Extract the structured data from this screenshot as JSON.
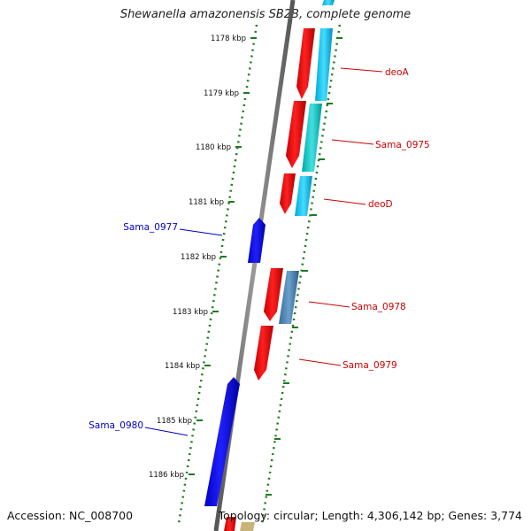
{
  "title": "Shewanella amazonensis SB2B, complete genome",
  "footer": {
    "accession": "Accession: NC_008700",
    "topology": "Topology: circular; Length: 4,306,142 bp; Genes: 3,774"
  },
  "ruler": {
    "unit": "kbp",
    "ticks": [
      "1178 kbp",
      "1179 kbp",
      "1180 kbp",
      "1181 kbp",
      "1182 kbp",
      "1183 kbp",
      "1184 kbp",
      "1185 kbp",
      "1186 kbp"
    ]
  },
  "genes": [
    {
      "name": "deoA",
      "strand": "forward",
      "color": "#ff0000",
      "partner_color": "#22ccee"
    },
    {
      "name": "Sama_0975",
      "strand": "forward",
      "color": "#ff0000",
      "partner_color": "#22cccc"
    },
    {
      "name": "deoD",
      "strand": "forward",
      "color": "#ff0000",
      "partner_color": "#22bbee"
    },
    {
      "name": "Sama_0977",
      "strand": "reverse",
      "color": "#0000ff"
    },
    {
      "name": "Sama_0978",
      "strand": "forward",
      "color": "#ff0000",
      "partner_color": "#4682b4"
    },
    {
      "name": "Sama_0979",
      "strand": "forward",
      "color": "#ff0000"
    },
    {
      "name": "Sama_0980",
      "strand": "reverse",
      "color": "#0000ff"
    }
  ],
  "colors": {
    "forward_label": "#cc0000",
    "reverse_label": "#0000cc",
    "ruler": "#1e7a1e",
    "backbone": "#7a7a7a"
  }
}
